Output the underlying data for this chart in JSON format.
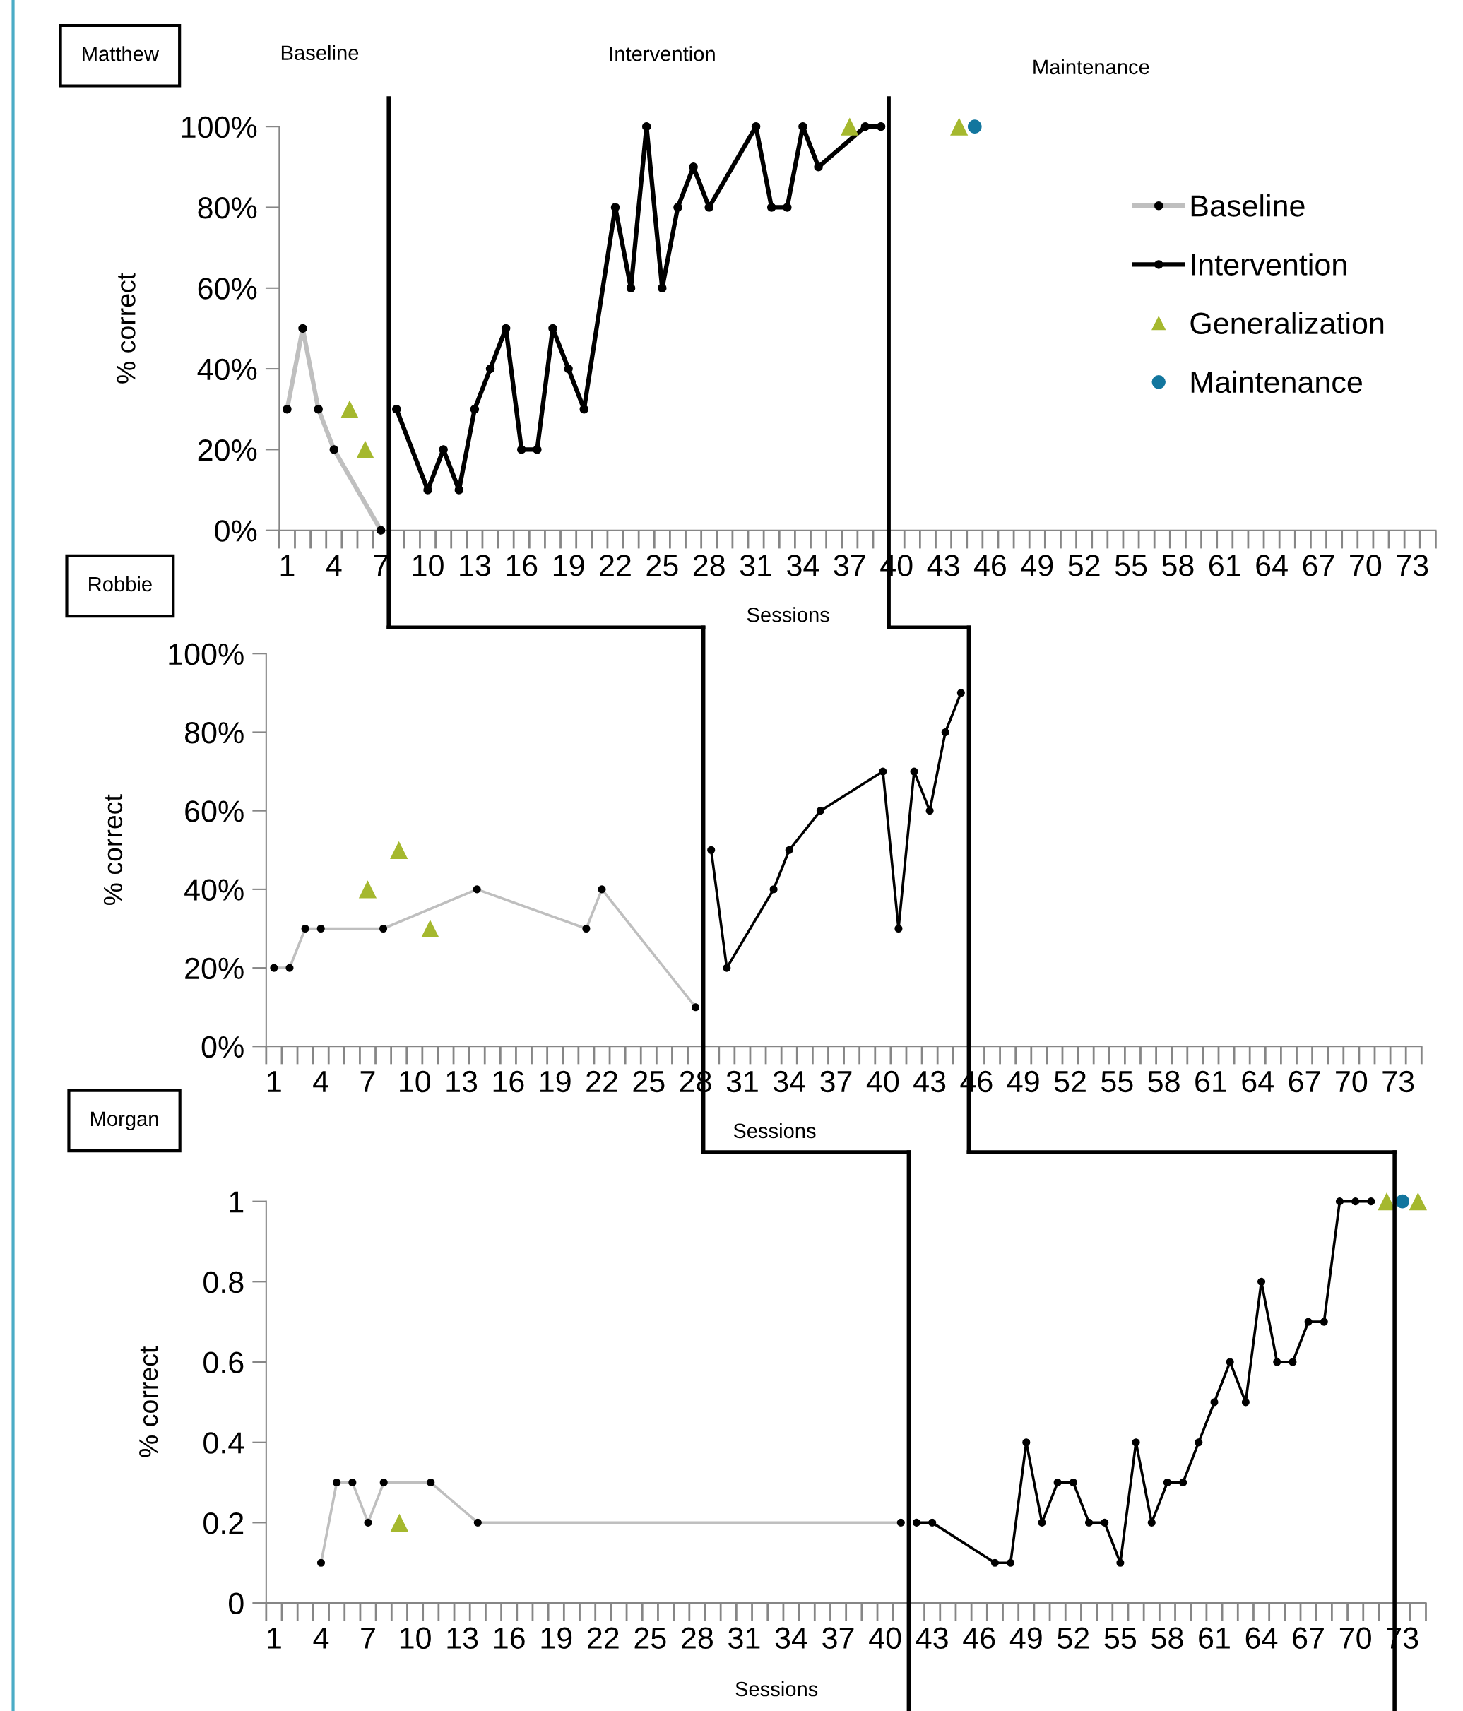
{
  "chart_data": [
    {
      "type": "line",
      "title": "Matthew",
      "xlabel": "Sessions",
      "ylabel": "% correct",
      "annotations": [
        "Baseline",
        "Intervention",
        "Maintenance"
      ],
      "xlim": [
        0.5,
        74.5
      ],
      "ylim": [
        0,
        100
      ],
      "xticks": [
        1,
        4,
        7,
        10,
        13,
        16,
        19,
        22,
        25,
        28,
        31,
        34,
        37,
        40,
        43,
        46,
        49,
        52,
        55,
        58,
        61,
        64,
        67,
        70,
        73
      ],
      "yticks": [
        {
          "value": 0,
          "label": "0%"
        },
        {
          "value": 20,
          "label": "20%"
        },
        {
          "value": 40,
          "label": "40%"
        },
        {
          "value": 60,
          "label": "60%"
        },
        {
          "value": 80,
          "label": "80%"
        },
        {
          "value": 100,
          "label": "100%"
        }
      ],
      "legend": "top right",
      "grid": false,
      "ref_lines": [
        {
          "axis": "x",
          "value": 7.5,
          "color": "#000000"
        },
        {
          "axis": "x",
          "value": 39.5,
          "color": "#000000"
        }
      ],
      "series": [
        {
          "name": "Baseline",
          "color": "#bfbfbf",
          "marker": "circle",
          "x": [
            1,
            2,
            3,
            4,
            7
          ],
          "values": [
            30,
            50,
            30,
            20,
            0
          ]
        },
        {
          "name": "Intervention",
          "color": "#000000",
          "marker": "circle",
          "x": [
            8,
            10,
            11,
            12,
            13,
            14,
            15,
            16,
            17,
            18,
            19,
            20,
            22,
            23,
            24,
            25,
            26,
            27,
            28,
            31,
            32,
            33,
            34,
            35,
            38,
            39
          ],
          "values": [
            30,
            10,
            20,
            10,
            30,
            40,
            50,
            20,
            20,
            50,
            40,
            30,
            80,
            60,
            100,
            60,
            80,
            90,
            80,
            100,
            80,
            80,
            100,
            90,
            100,
            100
          ]
        },
        {
          "name": "Generalization",
          "type": "scatter",
          "color": "#a5b82e",
          "marker": "triangle",
          "x": [
            5,
            6,
            37,
            44
          ],
          "values": [
            30,
            20,
            100,
            100
          ]
        },
        {
          "name": "Maintenance",
          "type": "scatter",
          "color": "#12769e",
          "marker": "circle",
          "x": [
            45
          ],
          "values": [
            100
          ]
        }
      ]
    },
    {
      "type": "line",
      "title": "Robbie",
      "xlabel": "Sessions",
      "ylabel": "% correct",
      "xlim": [
        0.5,
        74.5
      ],
      "ylim": [
        0,
        100
      ],
      "xticks": [
        1,
        4,
        7,
        10,
        13,
        16,
        19,
        22,
        25,
        28,
        31,
        34,
        37,
        40,
        43,
        46,
        49,
        52,
        55,
        58,
        61,
        64,
        67,
        70,
        73
      ],
      "yticks": [
        {
          "value": 0,
          "label": "0%"
        },
        {
          "value": 20,
          "label": "20%"
        },
        {
          "value": 40,
          "label": "40%"
        },
        {
          "value": 60,
          "label": "60%"
        },
        {
          "value": 80,
          "label": "80%"
        },
        {
          "value": 100,
          "label": "100%"
        }
      ],
      "grid": false,
      "ref_lines": [
        {
          "axis": "x",
          "value": 28.5,
          "color": "#000000"
        },
        {
          "axis": "x",
          "value": 45.5,
          "color": "#000000"
        }
      ],
      "series": [
        {
          "color": "#bfbfbf",
          "marker": "circle",
          "x": [
            1,
            2,
            3,
            4,
            8,
            14,
            21,
            22,
            28
          ],
          "values": [
            20,
            20,
            30,
            30,
            30,
            40,
            30,
            40,
            10
          ]
        },
        {
          "color": "#000000",
          "marker": "circle",
          "x": [
            29,
            30,
            33,
            34,
            36,
            40,
            41,
            42,
            43,
            44,
            45
          ],
          "values": [
            50,
            20,
            40,
            50,
            60,
            70,
            30,
            70,
            60,
            80,
            90
          ]
        },
        {
          "type": "scatter",
          "color": "#a5b82e",
          "marker": "triangle",
          "x": [
            7,
            9,
            11
          ],
          "values": [
            40,
            50,
            30
          ]
        }
      ]
    },
    {
      "type": "line",
      "title": "Morgan",
      "xlabel": "Sessions",
      "ylabel": "% correct",
      "xlim": [
        0.5,
        74.5
      ],
      "ylim": [
        0,
        1
      ],
      "xticks": [
        1,
        4,
        7,
        10,
        13,
        16,
        19,
        22,
        25,
        28,
        31,
        34,
        37,
        40,
        43,
        46,
        49,
        52,
        55,
        58,
        61,
        64,
        67,
        70,
        73
      ],
      "yticks": [
        0,
        0.2,
        0.4,
        0.6,
        0.8,
        1
      ],
      "grid": false,
      "ref_lines": [
        {
          "axis": "x",
          "value": 41.5,
          "color": "#000000"
        },
        {
          "axis": "x",
          "value": 72.5,
          "color": "#000000"
        }
      ],
      "series": [
        {
          "color": "#bfbfbf",
          "marker": "circle",
          "x": [
            4,
            5,
            6,
            7,
            8,
            11,
            14,
            41
          ],
          "values": [
            0.1,
            0.3,
            0.3,
            0.2,
            0.3,
            0.3,
            0.2,
            0.2
          ]
        },
        {
          "color": "#000000",
          "marker": "circle",
          "x": [
            42,
            43,
            47,
            48,
            49,
            50,
            51,
            52,
            53,
            54,
            55,
            56,
            57,
            58,
            59,
            60,
            61,
            62,
            63,
            64,
            65,
            66,
            67,
            68,
            69,
            70,
            71
          ],
          "values": [
            0.2,
            0.2,
            0.1,
            0.1,
            0.4,
            0.2,
            0.3,
            0.3,
            0.2,
            0.2,
            0.1,
            0.4,
            0.2,
            0.3,
            0.3,
            0.4,
            0.5,
            0.6,
            0.5,
            0.8,
            0.6,
            0.6,
            0.7,
            0.7,
            1,
            1,
            1
          ]
        },
        {
          "type": "scatter",
          "color": "#a5b82e",
          "marker": "triangle",
          "x": [
            9,
            72,
            74
          ],
          "values": [
            0.2,
            1,
            1
          ]
        },
        {
          "type": "scatter",
          "color": "#12769e",
          "marker": "circle",
          "x": [
            73
          ],
          "values": [
            1
          ]
        }
      ]
    }
  ]
}
